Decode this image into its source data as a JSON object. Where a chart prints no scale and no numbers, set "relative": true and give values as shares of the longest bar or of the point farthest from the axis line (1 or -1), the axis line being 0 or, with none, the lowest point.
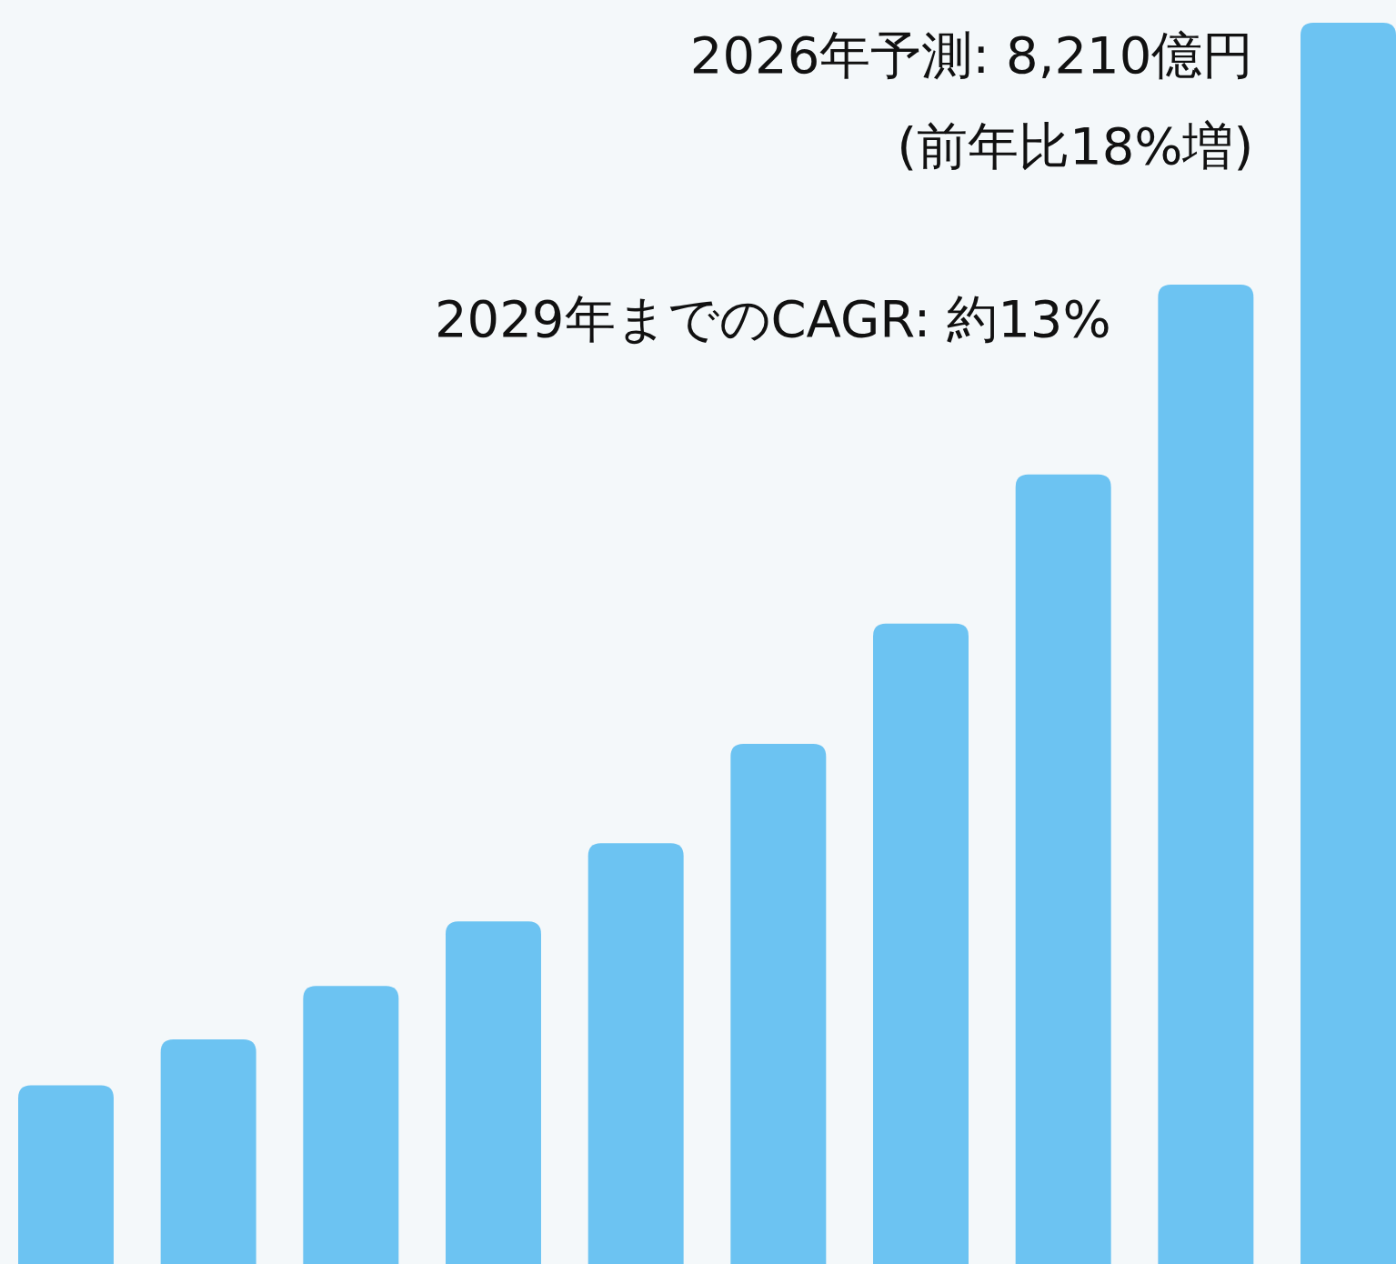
{
  "chart_data": {
    "type": "bar",
    "relative": true,
    "categories": [
      null,
      null,
      null,
      null,
      null,
      null,
      null,
      null,
      null,
      null
    ],
    "values": [
      0.144,
      0.181,
      0.224,
      0.276,
      0.339,
      0.419,
      0.516,
      0.636,
      0.789,
      1
    ],
    "color": "#6cc3f2",
    "annotations": [
      "2026年予測: 8,210億円",
      "(前年比18%増)",
      "2029年までのCAGR: 約13%"
    ]
  }
}
